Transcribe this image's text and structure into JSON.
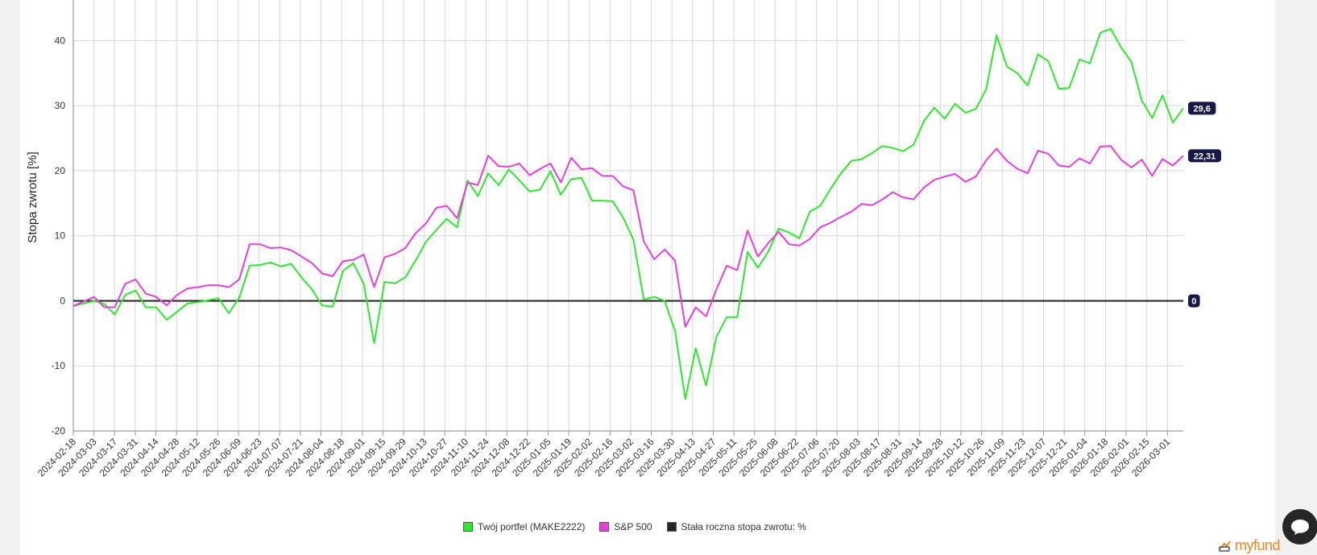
{
  "chart_data": {
    "type": "line",
    "ylabel": "Stopa zwrotu [%]",
    "xlabel": "",
    "ylim": [
      -20,
      45
    ],
    "yticks": [
      -20,
      -10,
      0,
      10,
      20,
      30,
      40
    ],
    "grid": true,
    "legend_position": "bottom-center",
    "x_tick_labels": [
      "2024-02-18",
      "2024-03-03",
      "2024-03-17",
      "2024-03-31",
      "2024-04-14",
      "2024-04-28",
      "2024-05-12",
      "2024-05-26",
      "2024-06-09",
      "2024-06-23",
      "2024-07-07",
      "2024-07-21",
      "2024-08-04",
      "2024-08-18",
      "2024-09-01",
      "2024-09-15",
      "2024-09-29",
      "2024-10-13",
      "2024-10-27",
      "2024-11-10",
      "2024-11-24",
      "2024-12-08",
      "2024-12-22",
      "2025-01-05",
      "2025-01-19",
      "2025-02-02",
      "2025-02-16",
      "2025-03-02",
      "2025-03-16",
      "2025-03-30",
      "2025-04-13",
      "2025-04-27",
      "2025-05-11",
      "2025-05-25",
      "2025-06-08",
      "2025-06-22",
      "2025-07-06",
      "2025-07-20",
      "2025-08-03",
      "2025-08-17",
      "2025-08-31",
      "2025-09-14",
      "2025-09-28",
      "2025-10-12",
      "2025-10-26",
      "2025-11-09",
      "2025-11-23",
      "2025-12-07",
      "2025-12-21",
      "2026-01-04",
      "2026-01-18",
      "2026-02-01",
      "2026-02-15",
      "2026-03-01"
    ],
    "series": [
      {
        "name": "Twój portfel (MAKE2222)",
        "color": "#2ee82e",
        "end_label": "29,6",
        "values": [
          -0.8,
          -0.4,
          0,
          -0.5,
          -2.1,
          0.9,
          1.6,
          -1,
          -1,
          -2.9,
          -1.7,
          -0.4,
          -0.2,
          0.1,
          0.4,
          -1.9,
          0.5,
          5.4,
          5.5,
          5.9,
          5.3,
          5.7,
          3.6,
          1.8,
          -0.7,
          -0.9,
          4.6,
          5.8,
          2.6,
          -6.5,
          2.9,
          2.7,
          3.6,
          6.2,
          9.1,
          10.9,
          12.6,
          11.3,
          18.5,
          16.1,
          19.6,
          17.8,
          20.2,
          18.5,
          16.8,
          17.1,
          19.9,
          16.3,
          18.7,
          18.9,
          15.4,
          15.4,
          15.3,
          12.8,
          9.4,
          0.2,
          0.6,
          0,
          -4.6,
          -15.1,
          -7.3,
          -13,
          -5.5,
          -2.5,
          -2.5,
          7.5,
          5.1,
          7.6,
          11.1,
          10.5,
          9.6,
          13.7,
          14.6,
          17.2,
          19.6,
          21.5,
          21.8,
          22.7,
          23.8,
          23.5,
          23,
          24,
          27.6,
          29.7,
          28,
          30.3,
          28.9,
          29.5,
          32.5,
          40.8,
          36,
          35,
          33.1,
          37.9,
          36.8,
          32.6,
          32.7,
          37.1,
          36.5,
          41.2,
          41.8,
          39,
          36.7,
          30.8,
          28.1,
          31.6,
          27.4,
          29.6
        ]
      },
      {
        "name": "S&P 500",
        "color": "#e83ee0",
        "end_label": "22,31",
        "values": [
          -0.8,
          -0.1,
          0.6,
          -1,
          -1,
          2.6,
          3.3,
          1.1,
          0.6,
          -0.7,
          0.9,
          1.9,
          2.1,
          2.4,
          2.4,
          2.1,
          3.3,
          8.7,
          8.7,
          8.1,
          8.2,
          7.8,
          6.8,
          5.8,
          4.2,
          3.8,
          6.1,
          6.3,
          7.1,
          2.1,
          6.7,
          7.2,
          8.1,
          10.4,
          11.9,
          14.3,
          14.6,
          12.7,
          18.2,
          17.8,
          22.3,
          20.7,
          20.6,
          21.1,
          19.3,
          20.3,
          21.1,
          18.2,
          22,
          20.2,
          20.4,
          19.2,
          19.2,
          17.6,
          17,
          9.1,
          6.4,
          7.9,
          6.2,
          -4,
          -1,
          -2.4,
          1.8,
          5.4,
          4.7,
          10.8,
          6.8,
          8.9,
          10.6,
          8.7,
          8.5,
          9.5,
          11.3,
          12,
          12.9,
          13.7,
          14.9,
          14.7,
          15.6,
          16.7,
          15.9,
          15.6,
          17.4,
          18.6,
          19.1,
          19.5,
          18.3,
          19.1,
          21.6,
          23.4,
          21.5,
          20.3,
          19.6,
          23.1,
          22.6,
          20.8,
          20.6,
          21.9,
          21.1,
          23.7,
          23.8,
          21.7,
          20.5,
          21.7,
          19.2,
          21.8,
          20.8,
          22.3
        ]
      }
    ],
    "baseline": {
      "value": 0,
      "label": "0",
      "color": "#222222"
    }
  },
  "legend": {
    "items": [
      {
        "label": "Twój portfel (MAKE2222)",
        "color": "#2ee82e"
      },
      {
        "label": "S&P 500",
        "color": "#e83ee0"
      },
      {
        "label": "Stała roczna stopa zwrotu:  %",
        "color": "#262626"
      }
    ]
  },
  "branding": {
    "logo_text": "myfund",
    "logo_icon": "myfund-logo-icon"
  },
  "chat_widget": {
    "icon": "chat-bubble-icon"
  },
  "colors": {
    "end_label_bg": "#17184a",
    "grid": "#d7d7d7"
  }
}
